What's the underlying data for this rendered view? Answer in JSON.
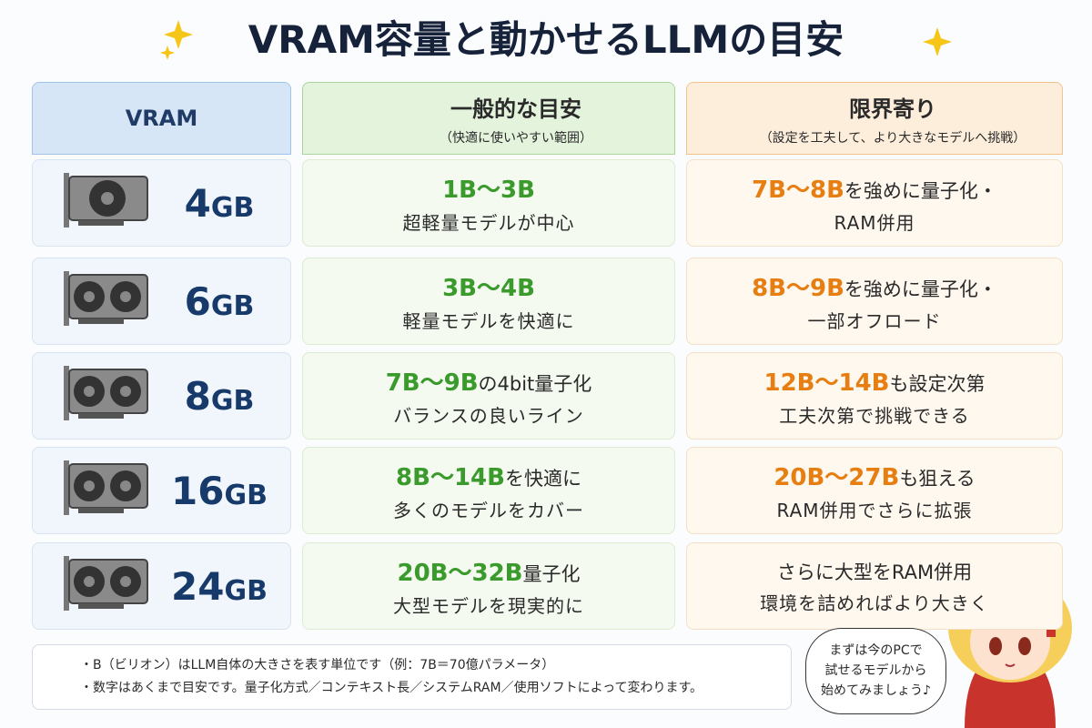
{
  "title": "VRAM容量と動かせるLLMの目安",
  "headers": {
    "vram": "VRAM",
    "general": {
      "title": "一般的な目安",
      "subtitle": "（快適に使いやすい範囲）"
    },
    "limit": {
      "title": "限界寄り",
      "subtitle": "（設定を工夫して、より大きなモデルへ挑戦）"
    }
  },
  "rows": [
    {
      "vram": "4",
      "unit": "GB",
      "general": {
        "highlight": "1B～3B",
        "line2": "超軽量モデルが中心"
      },
      "limit": {
        "highlight": "7B～8B",
        "suffix": "を強めに量子化・",
        "line2": "RAM併用"
      }
    },
    {
      "vram": "6",
      "unit": "GB",
      "general": {
        "highlight": "3B～4B",
        "line2": "軽量モデルを快適に"
      },
      "limit": {
        "highlight": "8B～9B",
        "suffix": "を強めに量子化・",
        "line2": "一部オフロード"
      }
    },
    {
      "vram": "8",
      "unit": "GB",
      "general": {
        "highlight": "7B～9B",
        "suffix": "の4bit量子化",
        "line2": "バランスの良いライン"
      },
      "limit": {
        "highlight": "12B～14B",
        "suffix": "も設定次第",
        "line2": "工夫次第で挑戦できる"
      }
    },
    {
      "vram": "16",
      "unit": "GB",
      "general": {
        "highlight": "8B～14B",
        "suffix": "を快適に",
        "line2": "多くのモデルをカバー"
      },
      "limit": {
        "highlight": "20B～27B",
        "suffix": "も狙える",
        "line2": "RAM併用でさらに拡張"
      }
    },
    {
      "vram": "24",
      "unit": "GB",
      "general": {
        "highlight": "20B～32B",
        "suffix": "量子化",
        "line2": "大型モデルを現実的に"
      },
      "limit": {
        "suffix": "さらに大型をRAM併用",
        "line2": "環境を詰めればより大きく"
      }
    }
  ],
  "notes": [
    "・B（ビリオン）はLLM自体の大きさを表す単位です（例：7B＝70億パラメータ）",
    "・数字はあくまで目安です。量子化方式／コンテキスト長／システムRAM／使用ソフトによって変わります。"
  ],
  "bubble": [
    "まずは今のPCで",
    "試せるモデルから",
    "始めてみましょう♪"
  ]
}
